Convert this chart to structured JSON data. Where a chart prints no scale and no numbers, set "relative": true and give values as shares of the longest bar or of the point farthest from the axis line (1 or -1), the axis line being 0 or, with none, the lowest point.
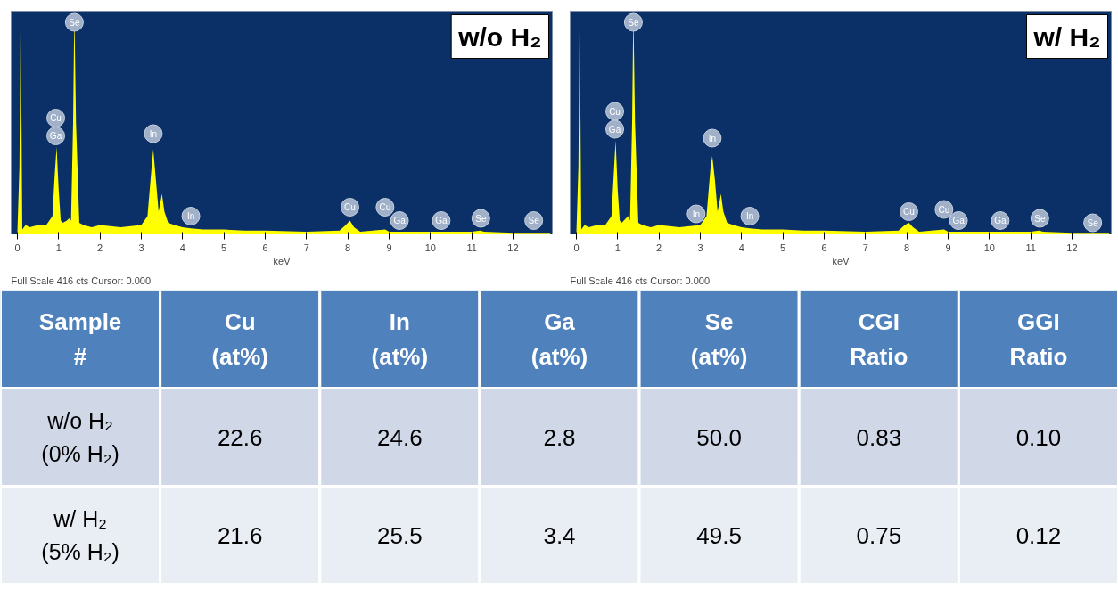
{
  "chart_data": [
    {
      "type": "area",
      "title": "w/o H₂",
      "xlabel": "keV",
      "relative": true,
      "xlim": [
        -0.15,
        12.95
      ],
      "xticks": [
        0,
        1,
        2,
        3,
        4,
        5,
        6,
        7,
        8,
        9,
        10,
        11,
        12
      ],
      "x": [
        0,
        0.05,
        0.08,
        0.12,
        0.2,
        0.3,
        0.5,
        0.7,
        0.85,
        0.9,
        0.95,
        1.0,
        1.05,
        1.1,
        1.2,
        1.25,
        1.3,
        1.35,
        1.38,
        1.42,
        1.5,
        1.6,
        1.8,
        2.0,
        2.5,
        3.0,
        3.15,
        3.25,
        3.29,
        3.35,
        3.42,
        3.5,
        3.56,
        3.65,
        3.8,
        4.0,
        4.2,
        4.5,
        5.0,
        5.5,
        6.0,
        7.0,
        7.8,
        7.95,
        8.05,
        8.15,
        8.3,
        8.9,
        9.0,
        9.5,
        10.0,
        11.0,
        11.2,
        11.3,
        12.0,
        12.9
      ],
      "series": [
        {
          "color": "#ffff00",
          "values": [
            0,
            0.3,
            1.0,
            0.02,
            0.04,
            0.03,
            0.04,
            0.04,
            0.08,
            0.25,
            0.39,
            0.2,
            0.06,
            0.05,
            0.06,
            0.07,
            0.06,
            0.5,
            1.0,
            0.5,
            0.05,
            0.04,
            0.03,
            0.04,
            0.03,
            0.04,
            0.08,
            0.3,
            0.38,
            0.25,
            0.1,
            0.18,
            0.1,
            0.05,
            0.04,
            0.03,
            0.025,
            0.02,
            0.02,
            0.015,
            0.015,
            0.01,
            0.015,
            0.04,
            0.06,
            0.03,
            0.01,
            0.02,
            0.01,
            0.01,
            0.01,
            0.01,
            0.015,
            0.01,
            0.005,
            0.005
          ]
        }
      ],
      "annotations": [
        {
          "text": "Cu",
          "x": 0.93,
          "y": 0.52
        },
        {
          "text": "Ga",
          "x": 0.93,
          "y": 0.44
        },
        {
          "text": "Se",
          "x": 1.38,
          "y": 0.95
        },
        {
          "text": "In",
          "x": 3.29,
          "y": 0.45
        },
        {
          "text": "In",
          "x": 4.2,
          "y": 0.08
        },
        {
          "text": "Cu",
          "x": 8.05,
          "y": 0.12
        },
        {
          "text": "Cu",
          "x": 8.9,
          "y": 0.12
        },
        {
          "text": "Ga",
          "x": 9.25,
          "y": 0.06
        },
        {
          "text": "Ga",
          "x": 10.26,
          "y": 0.06
        },
        {
          "text": "Se",
          "x": 11.22,
          "y": 0.07
        },
        {
          "text": "Se",
          "x": 12.5,
          "y": 0.06
        },
        "Full Scale 416 cts Cursor: 0.000"
      ]
    },
    {
      "type": "area",
      "title": "w/ H₂",
      "xlabel": "keV",
      "relative": true,
      "xlim": [
        -0.15,
        12.95
      ],
      "xticks": [
        0,
        1,
        2,
        3,
        4,
        5,
        6,
        7,
        8,
        9,
        10,
        11,
        12
      ],
      "x": [
        0,
        0.05,
        0.08,
        0.12,
        0.2,
        0.3,
        0.5,
        0.7,
        0.85,
        0.9,
        0.95,
        1.0,
        1.05,
        1.1,
        1.2,
        1.25,
        1.3,
        1.35,
        1.38,
        1.42,
        1.5,
        1.6,
        1.8,
        2.0,
        2.5,
        3.0,
        3.15,
        3.25,
        3.29,
        3.35,
        3.42,
        3.5,
        3.56,
        3.65,
        3.8,
        4.0,
        4.2,
        4.5,
        5.0,
        5.5,
        6.0,
        7.0,
        7.8,
        7.95,
        8.05,
        8.15,
        8.3,
        8.9,
        9.0,
        9.5,
        10.0,
        11.0,
        11.2,
        11.3,
        12.0,
        12.9
      ],
      "series": [
        {
          "color": "#ffff00",
          "values": [
            0,
            0.3,
            1.0,
            0.02,
            0.04,
            0.03,
            0.04,
            0.04,
            0.08,
            0.25,
            0.42,
            0.2,
            0.06,
            0.05,
            0.07,
            0.08,
            0.06,
            0.5,
            1.0,
            0.5,
            0.05,
            0.04,
            0.03,
            0.04,
            0.03,
            0.04,
            0.08,
            0.3,
            0.35,
            0.25,
            0.1,
            0.18,
            0.1,
            0.05,
            0.04,
            0.03,
            0.025,
            0.02,
            0.02,
            0.015,
            0.015,
            0.01,
            0.015,
            0.04,
            0.05,
            0.03,
            0.01,
            0.02,
            0.01,
            0.01,
            0.01,
            0.01,
            0.015,
            0.01,
            0.005,
            0.005
          ]
        }
      ],
      "annotations": [
        {
          "text": "Cu",
          "x": 0.93,
          "y": 0.55
        },
        {
          "text": "Ga",
          "x": 0.93,
          "y": 0.47
        },
        {
          "text": "Se",
          "x": 1.38,
          "y": 0.95
        },
        {
          "text": "In",
          "x": 2.9,
          "y": 0.09
        },
        {
          "text": "In",
          "x": 3.29,
          "y": 0.43
        },
        {
          "text": "In",
          "x": 4.2,
          "y": 0.08
        },
        {
          "text": "Cu",
          "x": 8.05,
          "y": 0.1
        },
        {
          "text": "Cu",
          "x": 8.9,
          "y": 0.11
        },
        {
          "text": "Ga",
          "x": 9.25,
          "y": 0.06
        },
        {
          "text": "Ga",
          "x": 10.26,
          "y": 0.06
        },
        {
          "text": "Se",
          "x": 11.22,
          "y": 0.07
        },
        {
          "text": "Se",
          "x": 12.5,
          "y": 0.05
        },
        "Full Scale 416 cts Cursor: 0.000"
      ]
    },
    {
      "type": "heatmap",
      "ylabel": "Sample #",
      "categories": [
        "Cu (at%)",
        "In (at%)",
        "Ga (at%)",
        "Se (at%)",
        "CGI Ratio",
        "GGI Ratio"
      ],
      "y_categories": [
        "w/o H₂ (0% H₂)",
        "w/ H₂ (5% H₂)"
      ],
      "cells": [
        [
          22.6,
          24.6,
          2.8,
          50.0,
          0.83,
          0.1
        ],
        [
          21.6,
          25.5,
          3.4,
          49.5,
          0.75,
          0.12
        ]
      ],
      "cell_labels": [
        [
          "22.6",
          "24.6",
          "2.8",
          "50.0",
          "0.83",
          "0.10"
        ],
        [
          "21.6",
          "25.5",
          "3.4",
          "49.5",
          "0.75",
          "0.12"
        ]
      ]
    }
  ]
}
